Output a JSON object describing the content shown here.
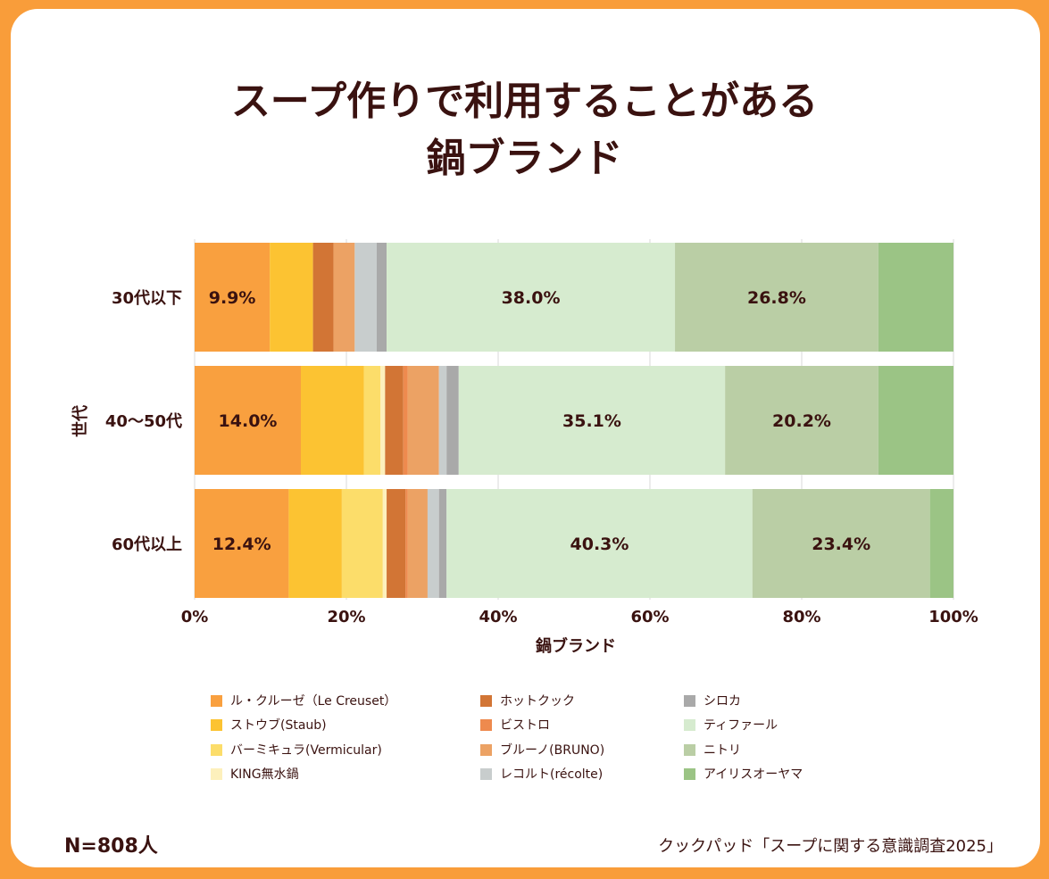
{
  "title_line1": "スープ作りで利用することがある",
  "title_line2": "鍋ブランド",
  "n_label": "N=808人",
  "source": "クックパッド「スープに関する意識調査2025」",
  "chart_data": {
    "type": "bar",
    "orientation": "horizontal",
    "stacked": true,
    "title": "スープ作りで利用することがある鍋ブランド",
    "xlabel": "鍋ブランド",
    "ylabel": "世代",
    "xlim": [
      0,
      100
    ],
    "xticks": [
      "0%",
      "20%",
      "40%",
      "60%",
      "80%",
      "100%"
    ],
    "categories": [
      "30代以下",
      "40〜50代",
      "60代以上"
    ],
    "legend_position": "bottom",
    "series": [
      {
        "name": "ル・クルーゼ（Le Creuset）",
        "color": "#F9A03F",
        "values": [
          9.9,
          14.0,
          12.4
        ]
      },
      {
        "name": "ストウブ(Staub)",
        "color": "#FCC332",
        "values": [
          5.7,
          8.3,
          7.0
        ]
      },
      {
        "name": "バーミキュラ(Vermicular)",
        "color": "#FCDD6A",
        "values": [
          0.0,
          2.2,
          5.4
        ]
      },
      {
        "name": "KING無水鍋",
        "color": "#FDF0BC",
        "values": [
          0.0,
          0.6,
          0.5
        ]
      },
      {
        "name": "ホットクック",
        "color": "#D27535",
        "values": [
          2.7,
          2.4,
          2.5
        ]
      },
      {
        "name": "ビストロ",
        "color": "#EE8A4E",
        "values": [
          0.0,
          0.6,
          0.3
        ]
      },
      {
        "name": "ブルーノ(BRUNO)",
        "color": "#ECA264",
        "values": [
          2.8,
          4.1,
          2.6
        ]
      },
      {
        "name": "レコルト(récolte)",
        "color": "#C8CDCD",
        "values": [
          2.9,
          1.0,
          1.5
        ]
      },
      {
        "name": "シロカ",
        "color": "#A9A9A9",
        "values": [
          1.3,
          1.6,
          1.0
        ]
      },
      {
        "name": "ティファール",
        "color": "#D6EBCF",
        "values": [
          38.0,
          35.1,
          40.3
        ]
      },
      {
        "name": "ニトリ",
        "color": "#BACEA5",
        "values": [
          26.8,
          20.2,
          23.4
        ]
      },
      {
        "name": "アイリスオーヤマ",
        "color": "#9BC485",
        "values": [
          9.9,
          9.9,
          3.1
        ]
      }
    ],
    "data_labels": [
      {
        "category": "30代以下",
        "series": "ル・クルーゼ（Le Creuset）",
        "text": "9.9%"
      },
      {
        "category": "30代以下",
        "series": "ティファール",
        "text": "38.0%"
      },
      {
        "category": "30代以下",
        "series": "ニトリ",
        "text": "26.8%"
      },
      {
        "category": "40〜50代",
        "series": "ル・クルーゼ（Le Creuset）",
        "text": "14.0%"
      },
      {
        "category": "40〜50代",
        "series": "ティファール",
        "text": "35.1%"
      },
      {
        "category": "40〜50代",
        "series": "ニトリ",
        "text": "20.2%"
      },
      {
        "category": "60代以上",
        "series": "ル・クルーゼ（Le Creuset）",
        "text": "12.4%"
      },
      {
        "category": "60代以上",
        "series": "ティファール",
        "text": "40.3%"
      },
      {
        "category": "60代以上",
        "series": "ニトリ",
        "text": "23.4%"
      }
    ],
    "legend_layout": [
      [
        "ル・クルーゼ（Le Creuset）",
        "ストウブ(Staub)",
        "バーミキュラ(Vermicular)",
        "KING無水鍋"
      ],
      [
        "ホットクック",
        "ビストロ",
        "ブルーノ(BRUNO)",
        "レコルト(récolte)"
      ],
      [
        "シロカ",
        "ティファール",
        "ニトリ",
        "アイリスオーヤマ"
      ]
    ]
  }
}
